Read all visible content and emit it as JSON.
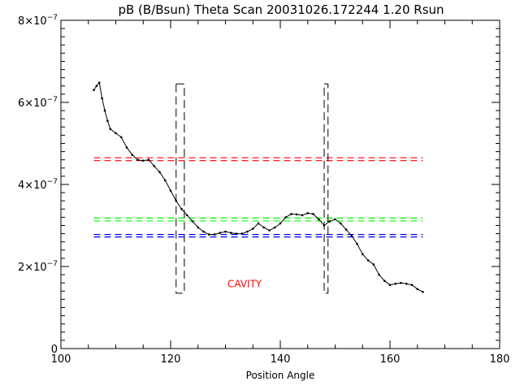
{
  "chart_data": {
    "type": "line",
    "title": "pB (B/Bsun) Theta Scan 20031026.172244 1.20 Rsun",
    "xlabel": "Position Angle",
    "ylabel": "",
    "xlim": [
      100,
      180
    ],
    "ylim": [
      0,
      8e-07
    ],
    "x_ticks": [
      100,
      120,
      140,
      160,
      180
    ],
    "x_tick_labels": [
      "100",
      "120",
      "140",
      "160",
      "180"
    ],
    "y_ticks": [
      0,
      2e-07,
      4e-07,
      6e-07,
      8e-07
    ],
    "y_tick_labels": [
      {
        "mant": "0",
        "exp": ""
      },
      {
        "mant": "2×10",
        "exp": "−7"
      },
      {
        "mant": "4×10",
        "exp": "−7"
      },
      {
        "mant": "6×10",
        "exp": "−7"
      },
      {
        "mant": "8×10",
        "exp": "−7"
      }
    ],
    "grid": false,
    "series": [
      {
        "color": "#000000",
        "x": [
          106.0,
          106.5,
          107.0,
          107.5,
          108.0,
          108.5,
          109.0,
          110.0,
          111.0,
          112.0,
          113.0,
          114.0,
          115.0,
          116.0,
          117.0,
          118.0,
          119.0,
          120.0,
          121.0,
          122.0,
          123.0,
          124.0,
          125.0,
          126.0,
          127.0,
          128.0,
          129.0,
          130.0,
          131.0,
          132.0,
          133.0,
          134.0,
          135.0,
          136.0,
          137.0,
          138.0,
          139.0,
          140.0,
          141.0,
          142.0,
          143.0,
          144.0,
          145.0,
          146.0,
          147.0,
          148.0,
          149.0,
          150.0,
          151.0,
          152.0,
          153.0,
          154.0,
          155.0,
          156.0,
          157.0,
          158.0,
          159.0,
          160.0,
          161.0,
          162.0,
          163.0,
          164.0,
          165.0,
          166.0
        ],
        "y": [
          6.3e-07,
          6.4e-07,
          6.48e-07,
          6.1e-07,
          5.8e-07,
          5.55e-07,
          5.35e-07,
          5.25e-07,
          5.15e-07,
          4.9e-07,
          4.72e-07,
          4.6e-07,
          4.58e-07,
          4.6e-07,
          4.45e-07,
          4.3e-07,
          4.1e-07,
          3.85e-07,
          3.6e-07,
          3.4e-07,
          3.25e-07,
          3.1e-07,
          2.95e-07,
          2.85e-07,
          2.78e-07,
          2.78e-07,
          2.82e-07,
          2.85e-07,
          2.82e-07,
          2.8e-07,
          2.8e-07,
          2.85e-07,
          2.92e-07,
          3.05e-07,
          2.95e-07,
          2.88e-07,
          2.95e-07,
          3.05e-07,
          3.2e-07,
          3.28e-07,
          3.27e-07,
          3.25e-07,
          3.3e-07,
          3.28e-07,
          3.15e-07,
          3e-07,
          3.1e-07,
          3.15e-07,
          3.05e-07,
          2.9e-07,
          2.75e-07,
          2.55e-07,
          2.3e-07,
          2.15e-07,
          2.05e-07,
          1.8e-07,
          1.65e-07,
          1.55e-07,
          1.58e-07,
          1.6e-07,
          1.58e-07,
          1.55e-07,
          1.45e-07,
          1.38e-07
        ]
      }
    ],
    "ref_lines": [
      {
        "color": "#ff0000",
        "y1": 4.65e-07,
        "y2": 4.58e-07,
        "x": [
          106,
          166
        ]
      },
      {
        "color": "#00ff00",
        "y1": 3.18e-07,
        "y2": 3.11e-07,
        "x": [
          106,
          166
        ]
      },
      {
        "color": "#0000ff",
        "y1": 2.78e-07,
        "y2": 2.72e-07,
        "x": [
          106,
          166
        ]
      }
    ],
    "boxes": [
      {
        "x": [
          121.0,
          122.5
        ],
        "y": [
          1.35e-07,
          6.45e-07
        ]
      },
      {
        "x": [
          148.0,
          148.7
        ],
        "y": [
          1.35e-07,
          6.45e-07
        ]
      }
    ],
    "annotation": {
      "text": "CAVITY",
      "x": 133.5,
      "y": 1.5e-07,
      "color": "#ff0000"
    }
  }
}
